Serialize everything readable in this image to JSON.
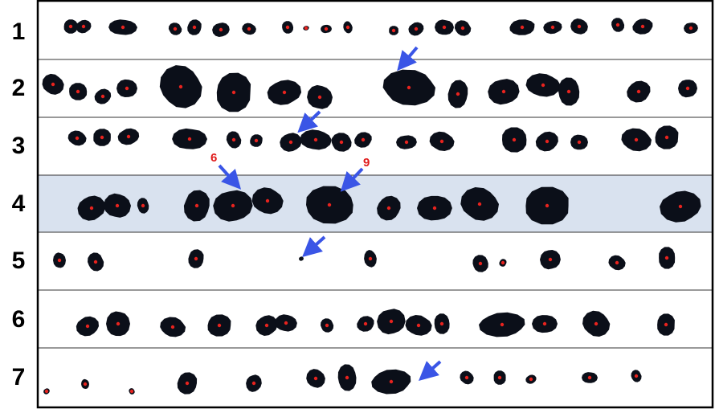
{
  "figure": {
    "row_labels": [
      "1",
      "2",
      "3",
      "4",
      "5",
      "6",
      "7"
    ],
    "highlighted_row": "4",
    "callouts": [
      "6",
      "9"
    ],
    "colors": {
      "blob": "#0b0f19",
      "centroid": "#e8231e",
      "arrow": "#3a55e6",
      "highlight": "#d9e2ef",
      "callout_text": "#e01b1b",
      "border": "#000000"
    }
  }
}
